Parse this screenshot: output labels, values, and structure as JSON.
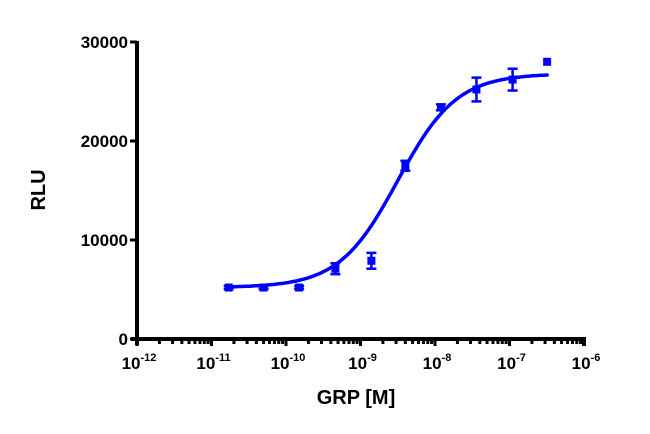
{
  "chart_data": {
    "type": "scatter",
    "subtype": "dose-response with sigmoidal fit and error bars",
    "title": "",
    "xlabel": "GRP [M]",
    "ylabel": "RLU",
    "xscale": "log",
    "xlim": [
      1e-12,
      1e-06
    ],
    "ylim": [
      0,
      30000
    ],
    "x_ticks": [
      {
        "base": "10",
        "exp": "-12",
        "value": 1e-12
      },
      {
        "base": "10",
        "exp": "-11",
        "value": 1e-11
      },
      {
        "base": "10",
        "exp": "-10",
        "value": 1e-10
      },
      {
        "base": "10",
        "exp": "-9",
        "value": 1e-09
      },
      {
        "base": "10",
        "exp": "-8",
        "value": 1e-08
      },
      {
        "base": "10",
        "exp": "-7",
        "value": 1e-07
      },
      {
        "base": "10",
        "exp": "-6",
        "value": 1e-06
      }
    ],
    "y_ticks": [
      "0",
      "10000",
      "20000",
      "30000"
    ],
    "y_tick_values": [
      0,
      10000,
      20000,
      30000
    ],
    "grid": false,
    "legend": null,
    "color": "#0000FF",
    "series": [
      {
        "name": "GRP",
        "marker": "square",
        "x": [
          1.7e-11,
          5e-11,
          1.5e-10,
          4.6e-10,
          1.4e-09,
          4e-09,
          1.2e-08,
          3.6e-08,
          1.1e-07,
          3.2e-07
        ],
        "y": [
          5200,
          5200,
          5200,
          7100,
          7900,
          17500,
          23400,
          25200,
          26200,
          28000
        ],
        "error": [
          150,
          150,
          150,
          550,
          800,
          500,
          300,
          1200,
          1100,
          0
        ]
      }
    ],
    "fit": {
      "model": "4-parameter logistic",
      "bottom": 5200,
      "top": 26800,
      "log_ec50": -8.5,
      "hill_slope": 1.1,
      "x_range": [
        1.7e-11,
        3.2e-07
      ]
    }
  }
}
